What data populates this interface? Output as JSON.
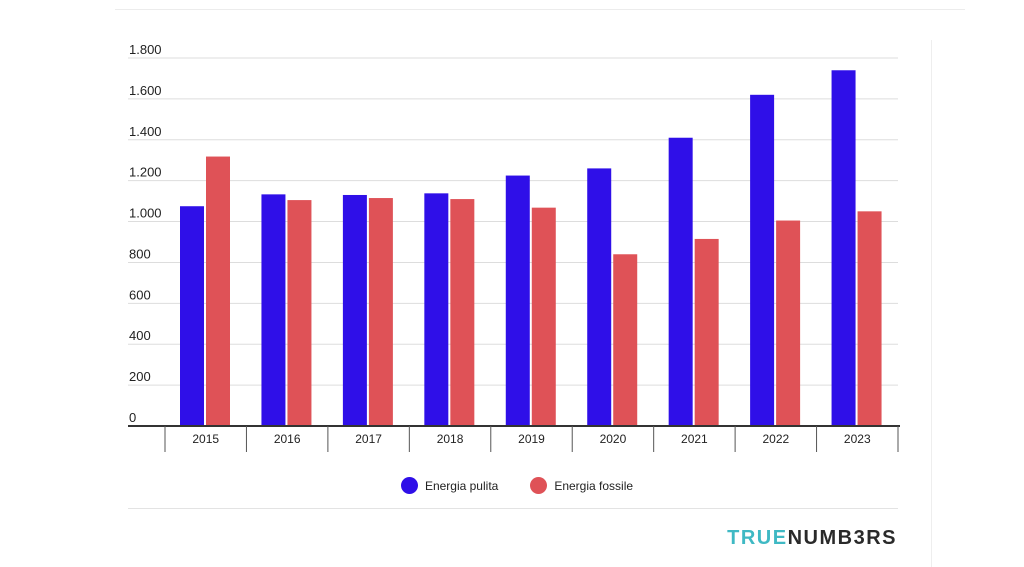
{
  "chart_data": {
    "type": "bar",
    "categories": [
      "2015",
      "2016",
      "2017",
      "2018",
      "2019",
      "2020",
      "2021",
      "2022",
      "2023"
    ],
    "series": [
      {
        "name": "Energia pulita",
        "color": "#2f0fe8",
        "values": [
          1075,
          1133,
          1130,
          1138,
          1225,
          1260,
          1410,
          1620,
          1740
        ]
      },
      {
        "name": "Energia fossile",
        "color": "#df5257",
        "values": [
          1318,
          1105,
          1115,
          1110,
          1068,
          840,
          915,
          1005,
          1050
        ]
      }
    ],
    "y_ticks": [
      {
        "value": 0,
        "label": "0"
      },
      {
        "value": 200,
        "label": "200"
      },
      {
        "value": 400,
        "label": "400"
      },
      {
        "value": 600,
        "label": "600"
      },
      {
        "value": 800,
        "label": "800"
      },
      {
        "value": 1000,
        "label": "1.000"
      },
      {
        "value": 1200,
        "label": "1.200"
      },
      {
        "value": 1400,
        "label": "1.400"
      },
      {
        "value": 1600,
        "label": "1.600"
      },
      {
        "value": 1800,
        "label": "1.800"
      }
    ],
    "ylim": [
      0,
      1800
    ],
    "grid": true,
    "legend_position": "bottom"
  },
  "legend": [
    {
      "label": "Energia pulita",
      "color": "#2f0fe8"
    },
    {
      "label": "Energia fossile",
      "color": "#df5257"
    }
  ],
  "logo": {
    "part1": "TRUE",
    "part2": "NUMB3RS"
  }
}
